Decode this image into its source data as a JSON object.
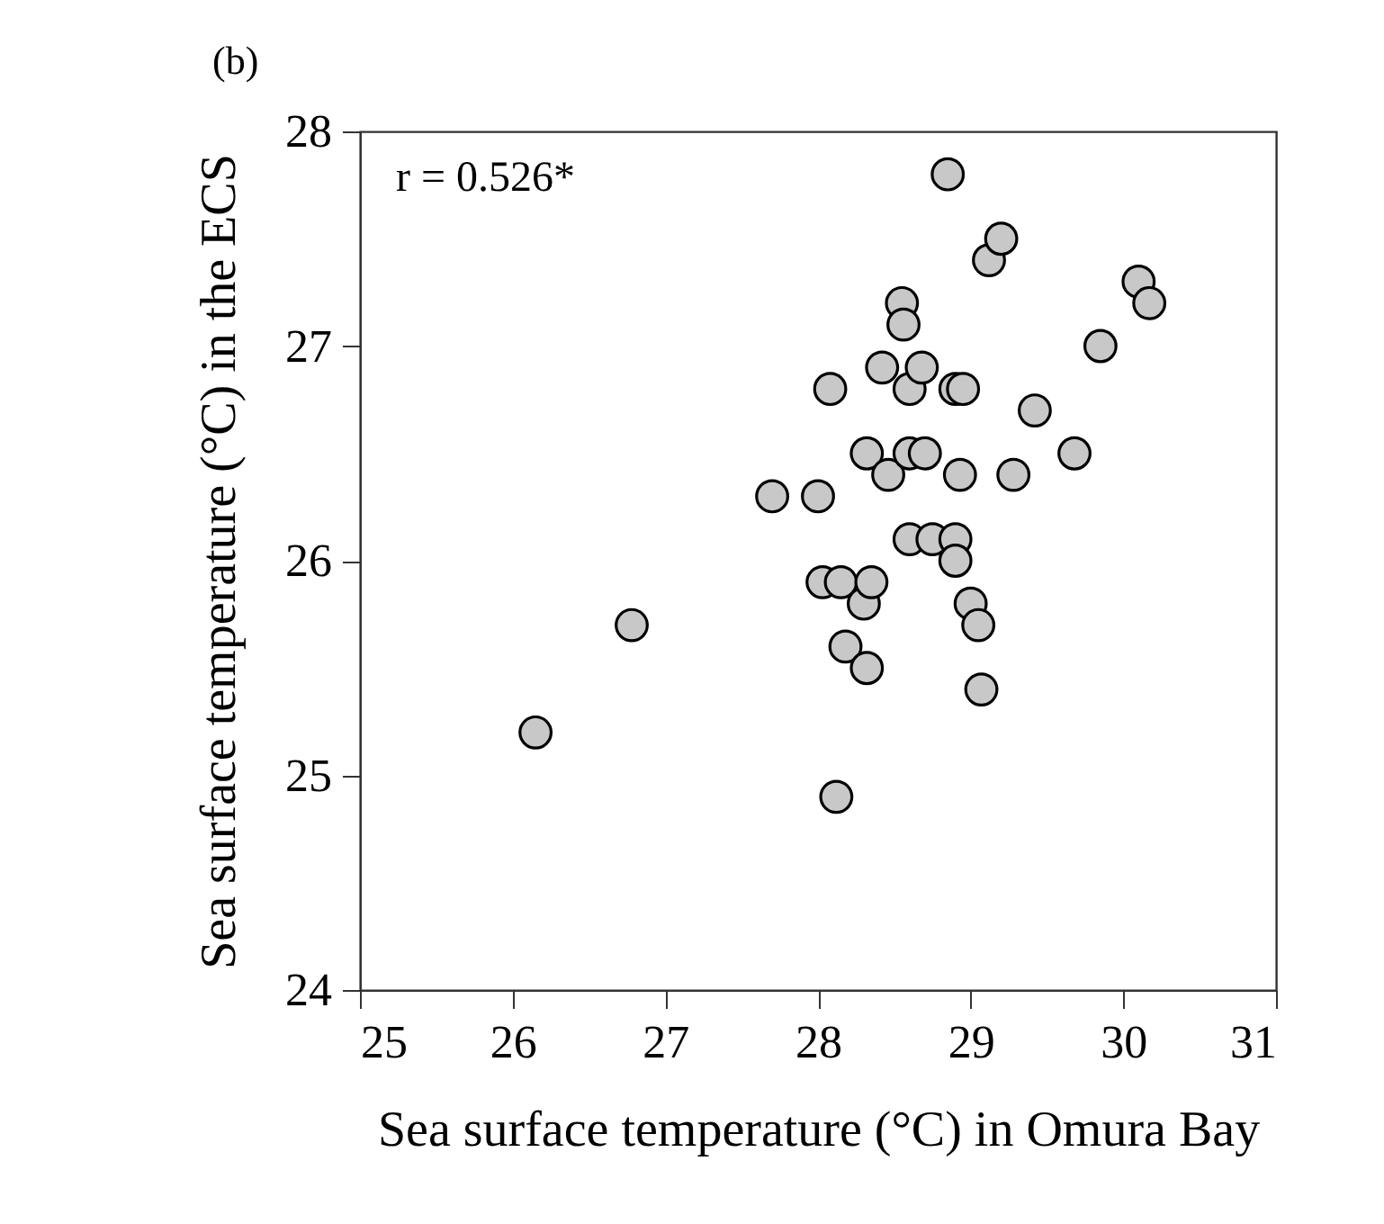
{
  "chart_data": {
    "type": "scatter",
    "title": "(b)",
    "xlabel": "Sea surface temperature (°C) in Omura Bay",
    "ylabel": "Sea surface temperature (°C) in the ECS",
    "annotations": [
      "r = 0.526*"
    ],
    "x": [
      26.15,
      26.78,
      27.7,
      28.0,
      28.08,
      28.03,
      28.15,
      28.18,
      28.12,
      28.3,
      28.35,
      28.32,
      28.32,
      28.42,
      28.46,
      28.55,
      28.56,
      28.6,
      28.6,
      28.6,
      28.68,
      28.7,
      28.75,
      28.85,
      28.9,
      28.95,
      28.93,
      28.9,
      28.9,
      29.0,
      29.05,
      29.07,
      29.12,
      29.2,
      29.28,
      29.42,
      29.68,
      29.85,
      30.1,
      30.17
    ],
    "values": [
      25.2,
      25.7,
      26.3,
      26.3,
      26.8,
      25.9,
      25.9,
      25.6,
      24.9,
      25.8,
      25.9,
      25.5,
      26.5,
      26.9,
      26.4,
      27.2,
      27.1,
      26.8,
      26.5,
      26.1,
      26.9,
      26.5,
      26.1,
      27.8,
      26.8,
      26.8,
      26.4,
      26.1,
      26.0,
      25.8,
      25.7,
      25.4,
      27.4,
      27.5,
      26.4,
      26.7,
      26.5,
      27.0,
      27.3,
      27.2
    ],
    "color": "#c8c8c8",
    "marker": "circle",
    "grid": false,
    "xlim": [
      25,
      31
    ],
    "xticks": [
      25,
      26,
      27,
      28,
      29,
      30,
      31
    ],
    "ylim": [
      24,
      28
    ],
    "yticks": [
      24,
      25,
      26,
      27,
      28
    ]
  }
}
